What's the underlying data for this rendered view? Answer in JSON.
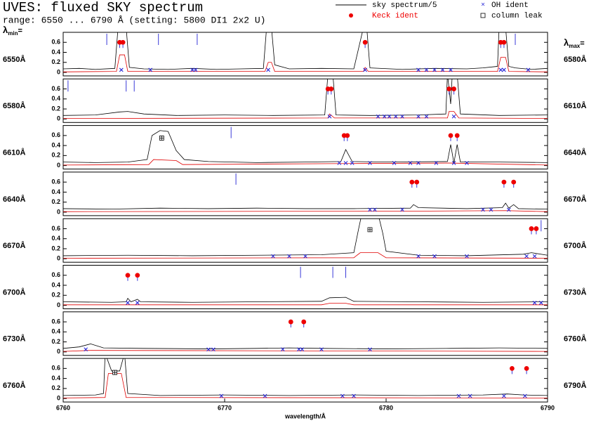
{
  "chart_data": {
    "type": "line",
    "title": "UVES: fluxed SKY spectrum",
    "subtitle": "range: 6550 ... 6790 Å (setting: 5800 DI1 2x2 U)",
    "legend": {
      "sky": "sky spectrum/5",
      "keck": "Keck ident",
      "oh": "OH ident",
      "leak": "column leak"
    },
    "colors": {
      "sky": "#000000",
      "scaled": "#e00000",
      "keck": "#ee0000",
      "oh": "#2a2ad8",
      "marker": "#3a3ad8",
      "leak": "#000000"
    },
    "lambda_min": {
      "symbol": "λ",
      "sub": "min",
      "suffix": "="
    },
    "lambda_max": {
      "symbol": "λ",
      "sub": "max",
      "suffix": "="
    },
    "xlabel": "wavelength/Å",
    "ylim": [
      -0.07,
      0.8
    ],
    "yticks": [
      0,
      0.2,
      0.4,
      0.6
    ],
    "xticks": [
      6760,
      6770,
      6780,
      6790
    ],
    "panels": [
      {
        "xlim": [
          6550,
          6580
        ],
        "min_label": "6550Å",
        "max_label": "6580Å",
        "series": [
          {
            "x": [
              6550,
              6551,
              6552,
              6553.2,
              6553.4,
              6553.9,
              6554.1,
              6555,
              6556.5,
              6558,
              6559.5,
              6561,
              6562.4,
              6562.6,
              6562.9,
              6563.1,
              6564,
              6566,
              6568,
              6568.6,
              6568.8,
              6569,
              6571,
              6573,
              6575,
              6576,
              6576.9,
              6577.0,
              6577.4,
              6577.6,
              6578,
              6579,
              6580
            ],
            "values": [
              0.07,
              0.08,
              0.06,
              0.08,
              0.9,
              0.9,
              0.1,
              0.07,
              0.06,
              0.08,
              0.06,
              0.07,
              0.08,
              0.9,
              0.9,
              0.15,
              0.07,
              0.08,
              0.07,
              0.9,
              0.9,
              0.09,
              0.06,
              0.08,
              0.07,
              0.09,
              0.12,
              0.9,
              0.9,
              0.12,
              0.09,
              0.06,
              0.08
            ]
          },
          {
            "x": [
              6550,
              6553.3,
              6553.5,
              6553.8,
              6554,
              6562.5,
              6562.7,
              6562.9,
              6563.1,
              6568.6,
              6568.7,
              6568.9,
              6576.9,
              6577.1,
              6577.4,
              6577.6,
              6580
            ],
            "values": [
              0.01,
              0.02,
              0.35,
              0.35,
              0.02,
              0.02,
              0.2,
              0.2,
              0.02,
              0.02,
              0.1,
              0.02,
              0.02,
              0.3,
              0.3,
              0.02,
              0.01
            ]
          }
        ],
        "keck_ident": {
          "x": [
            6553.5,
            6553.7,
            6568.7,
            6577.1,
            6577.3
          ],
          "values": [
            0.6,
            0.6,
            0.6,
            0.6,
            0.6
          ]
        },
        "oh_ident": {
          "x": [
            6553.6,
            6555.4,
            6558,
            6558.2,
            6562.7,
            6568.7,
            6572,
            6572.5,
            6573,
            6573.5,
            6574,
            6577.1,
            6577.3,
            6578.8
          ],
          "values": [
            0.05,
            0.05,
            0.05,
            0.05,
            0.05,
            0.05,
            0.05,
            0.05,
            0.05,
            0.05,
            0.05,
            0.05,
            0.05,
            0.05
          ]
        },
        "column_leak": {
          "x": [],
          "values": []
        },
        "markers": [
          6552.7,
          6555.9,
          6558.3,
          6578
        ]
      },
      {
        "xlim": [
          6580,
          6610
        ],
        "min_label": "6580Å",
        "max_label": "6610Å",
        "series": [
          {
            "x": [
              6580,
              6582,
              6583.5,
              6584,
              6585,
              6587,
              6590,
              6593,
              6596.2,
              6596.4,
              6596.7,
              6596.9,
              6599,
              6602,
              6603.7,
              6603.8,
              6604.0,
              6604.1,
              6604.4,
              6604.6,
              6607,
              6610
            ],
            "values": [
              0.07,
              0.08,
              0.14,
              0.15,
              0.1,
              0.07,
              0.08,
              0.07,
              0.08,
              0.9,
              0.9,
              0.08,
              0.07,
              0.08,
              0.1,
              0.9,
              0.3,
              0.9,
              0.9,
              0.1,
              0.07,
              0.08
            ]
          },
          {
            "x": [
              6580,
              6596.4,
              6596.5,
              6596.8,
              6603.8,
              6603.9,
              6604.2,
              6604.5,
              6610
            ],
            "values": [
              0.01,
              0.02,
              0.1,
              0.02,
              0.02,
              0.15,
              0.15,
              0.02,
              0.01
            ]
          }
        ],
        "keck_ident": {
          "x": [
            6596.4,
            6596.6,
            6603.9,
            6604.2
          ],
          "values": [
            0.6,
            0.6,
            0.6,
            0.6
          ]
        },
        "oh_ident": {
          "x": [
            6596.5,
            6599.5,
            6599.9,
            6600.2,
            6600.6,
            6601,
            6602,
            6602.5,
            6604.2
          ],
          "values": [
            0.05,
            0.05,
            0.05,
            0.05,
            0.05,
            0.05,
            0.05,
            0.05,
            0.05
          ]
        },
        "column_leak": {
          "x": [],
          "values": []
        },
        "markers": [
          6580.3,
          6583.9,
          6584.4
        ]
      },
      {
        "xlim": [
          6610,
          6640
        ],
        "min_label": "6610Å",
        "max_label": "6640Å",
        "series": [
          {
            "x": [
              6610,
              6612,
              6614,
              6615.2,
              6615.5,
              6616,
              6616.5,
              6617,
              6617.5,
              6619,
              6622,
              6625,
              6627.2,
              6627.5,
              6627.9,
              6630,
              6633.8,
              6634,
              6634.2,
              6634.4,
              6634.6,
              6637,
              6640
            ],
            "values": [
              0.07,
              0.06,
              0.07,
              0.12,
              0.6,
              0.7,
              0.68,
              0.3,
              0.12,
              0.08,
              0.06,
              0.07,
              0.08,
              0.32,
              0.08,
              0.07,
              0.08,
              0.42,
              0.05,
              0.42,
              0.07,
              0.07,
              0.06
            ]
          },
          {
            "x": [
              6610,
              6615.3,
              6615.6,
              6617,
              6617.4,
              6627.5,
              6634,
              6640
            ],
            "values": [
              0.01,
              0.02,
              0.12,
              0.1,
              0.02,
              0.04,
              0.05,
              0.01
            ]
          }
        ],
        "keck_ident": {
          "x": [
            6627.4,
            6627.6,
            6634,
            6634.4
          ],
          "values": [
            0.6,
            0.6,
            0.6,
            0.6
          ]
        },
        "oh_ident": {
          "x": [
            6627.1,
            6627.5,
            6627.9,
            6629,
            6630.5,
            6631.5,
            6632,
            6633.1,
            6634.2,
            6635
          ],
          "values": [
            0.05,
            0.05,
            0.05,
            0.05,
            0.05,
            0.05,
            0.05,
            0.05,
            0.05,
            0.05
          ]
        },
        "column_leak": {
          "x": [
            6616.1
          ],
          "values": [
            0.55
          ]
        },
        "markers": [
          6620.4
        ]
      },
      {
        "xlim": [
          6640,
          6670
        ],
        "min_label": "6640Å",
        "max_label": "6670Å",
        "series": [
          {
            "x": [
              6640,
              6643,
              6646,
              6649,
              6652,
              6655,
              6658,
              6661.5,
              6661.7,
              6662,
              6665,
              6667.2,
              6667.4,
              6667.6,
              6667.9,
              6668.2,
              6670
            ],
            "values": [
              0.07,
              0.06,
              0.08,
              0.07,
              0.08,
              0.07,
              0.07,
              0.08,
              0.15,
              0.09,
              0.07,
              0.09,
              0.18,
              0.08,
              0.15,
              0.07,
              0.06
            ]
          },
          {
            "x": [
              6640,
              6661.7,
              6667.4,
              6670
            ],
            "values": [
              0.01,
              0.02,
              0.03,
              0.01
            ]
          }
        ],
        "keck_ident": {
          "x": [
            6661.6,
            6661.9,
            6667.3,
            6667.9
          ],
          "values": [
            0.6,
            0.6,
            0.6,
            0.6
          ]
        },
        "oh_ident": {
          "x": [
            6659,
            6659.3,
            6661,
            6666,
            6666.5,
            6667.6
          ],
          "values": [
            0.05,
            0.05,
            0.05,
            0.05,
            0.05,
            0.05
          ]
        },
        "column_leak": {
          "x": [],
          "values": []
        },
        "markers": [
          6650.7
        ]
      },
      {
        "xlim": [
          6670,
          6700
        ],
        "min_label": "6670Å",
        "max_label": "6700Å",
        "series": [
          {
            "x": [
              6670,
              6674,
              6678,
              6682,
              6686,
              6688,
              6688.3,
              6688.5,
              6689.5,
              6689.8,
              6690,
              6692,
              6695,
              6698.5,
              6699,
              6700
            ],
            "values": [
              0.06,
              0.07,
              0.06,
              0.07,
              0.08,
              0.12,
              0.6,
              0.9,
              0.9,
              0.5,
              0.15,
              0.07,
              0.06,
              0.09,
              0.12,
              0.07
            ]
          },
          {
            "x": [
              6670,
              6688,
              6688.4,
              6689.5,
              6690,
              6700
            ],
            "values": [
              0.01,
              0.02,
              0.12,
              0.12,
              0.02,
              0.01
            ]
          }
        ],
        "keck_ident": {
          "x": [
            6699.0,
            6699.3
          ],
          "values": [
            0.6,
            0.6
          ]
        },
        "oh_ident": {
          "x": [
            6683,
            6684,
            6685,
            6692,
            6693,
            6695,
            6698.7,
            6699.2
          ],
          "values": [
            0.05,
            0.05,
            0.05,
            0.05,
            0.05,
            0.05,
            0.05,
            0.05
          ]
        },
        "column_leak": {
          "x": [
            6689
          ],
          "values": [
            0.58
          ]
        },
        "markers": [
          6699.6
        ]
      },
      {
        "xlim": [
          6700,
          6730
        ],
        "min_label": "6700Å",
        "max_label": "6730Å",
        "series": [
          {
            "x": [
              6700,
              6703,
              6703.9,
              6704,
              6704.2,
              6704.6,
              6704.8,
              6708,
              6712,
              6716,
              6716.5,
              6717.5,
              6718,
              6722,
              6726,
              6730
            ],
            "values": [
              0.07,
              0.06,
              0.07,
              0.14,
              0.07,
              0.12,
              0.07,
              0.06,
              0.07,
              0.08,
              0.15,
              0.16,
              0.08,
              0.07,
              0.06,
              0.07
            ]
          },
          {
            "x": [
              6700,
              6716,
              6716.5,
              6717.5,
              6718,
              6730
            ],
            "values": [
              0.01,
              0.01,
              0.04,
              0.04,
              0.01,
              0.01
            ]
          }
        ],
        "keck_ident": {
          "x": [
            6704,
            6704.6
          ],
          "values": [
            0.6,
            0.6
          ]
        },
        "oh_ident": {
          "x": [
            6704,
            6704.6,
            6729.2,
            6729.6
          ],
          "values": [
            0.05,
            0.05,
            0.05,
            0.05
          ]
        },
        "column_leak": {
          "x": [],
          "values": []
        },
        "markers": [
          6714.7,
          6716.7,
          6717.5
        ]
      },
      {
        "xlim": [
          6730,
          6760
        ],
        "min_label": "6730Å",
        "max_label": "6760Å",
        "series": [
          {
            "x": [
              6730,
              6731,
              6731.7,
              6732.5,
              6735,
              6739,
              6742,
              6744,
              6746,
              6750,
              6754,
              6757,
              6760
            ],
            "values": [
              0.07,
              0.1,
              0.16,
              0.08,
              0.07,
              0.06,
              0.07,
              0.08,
              0.07,
              0.06,
              0.07,
              0.08,
              0.07
            ]
          },
          {
            "x": [
              6730,
              6731.7,
              6760
            ],
            "values": [
              0.01,
              0.03,
              0.01
            ]
          }
        ],
        "keck_ident": {
          "x": [
            6744.1,
            6744.9
          ],
          "values": [
            0.6,
            0.6
          ]
        },
        "oh_ident": {
          "x": [
            6731.4,
            6739,
            6739.3,
            6743.6,
            6744.6,
            6744.8,
            6746,
            6749
          ],
          "values": [
            0.05,
            0.05,
            0.05,
            0.05,
            0.05,
            0.05,
            0.05,
            0.05
          ]
        },
        "column_leak": {
          "x": [],
          "values": []
        },
        "markers": []
      },
      {
        "xlim": [
          6760,
          6790
        ],
        "min_label": "6760Å",
        "max_label": "6790Å",
        "series": [
          {
            "x": [
              6760,
              6762,
              6762.5,
              6762.6,
              6763,
              6763.5,
              6763.8,
              6764,
              6766,
              6770,
              6774,
              6778,
              6782,
              6786,
              6787.5,
              6788.5,
              6790
            ],
            "values": [
              0.06,
              0.07,
              0.1,
              0.9,
              0.55,
              0.55,
              0.9,
              0.1,
              0.06,
              0.07,
              0.06,
              0.07,
              0.06,
              0.07,
              0.09,
              0.07,
              0.06
            ]
          },
          {
            "x": [
              6760,
              6762.6,
              6762.8,
              6763.6,
              6763.9,
              6790
            ],
            "values": [
              0.01,
              0.02,
              0.5,
              0.5,
              0.02,
              0.01
            ]
          }
        ],
        "keck_ident": {
          "x": [
            6787.8,
            6788.7
          ],
          "values": [
            0.6,
            0.6
          ]
        },
        "oh_ident": {
          "x": [
            6769.8,
            6772.5,
            6777.3,
            6778,
            6784.5,
            6785.2,
            6787.3,
            6788.6
          ],
          "values": [
            0.05,
            0.05,
            0.05,
            0.05,
            0.05,
            0.05,
            0.05,
            0.05
          ]
        },
        "column_leak": {
          "x": [
            6763.2
          ],
          "values": [
            0.52
          ]
        },
        "markers": []
      }
    ]
  }
}
